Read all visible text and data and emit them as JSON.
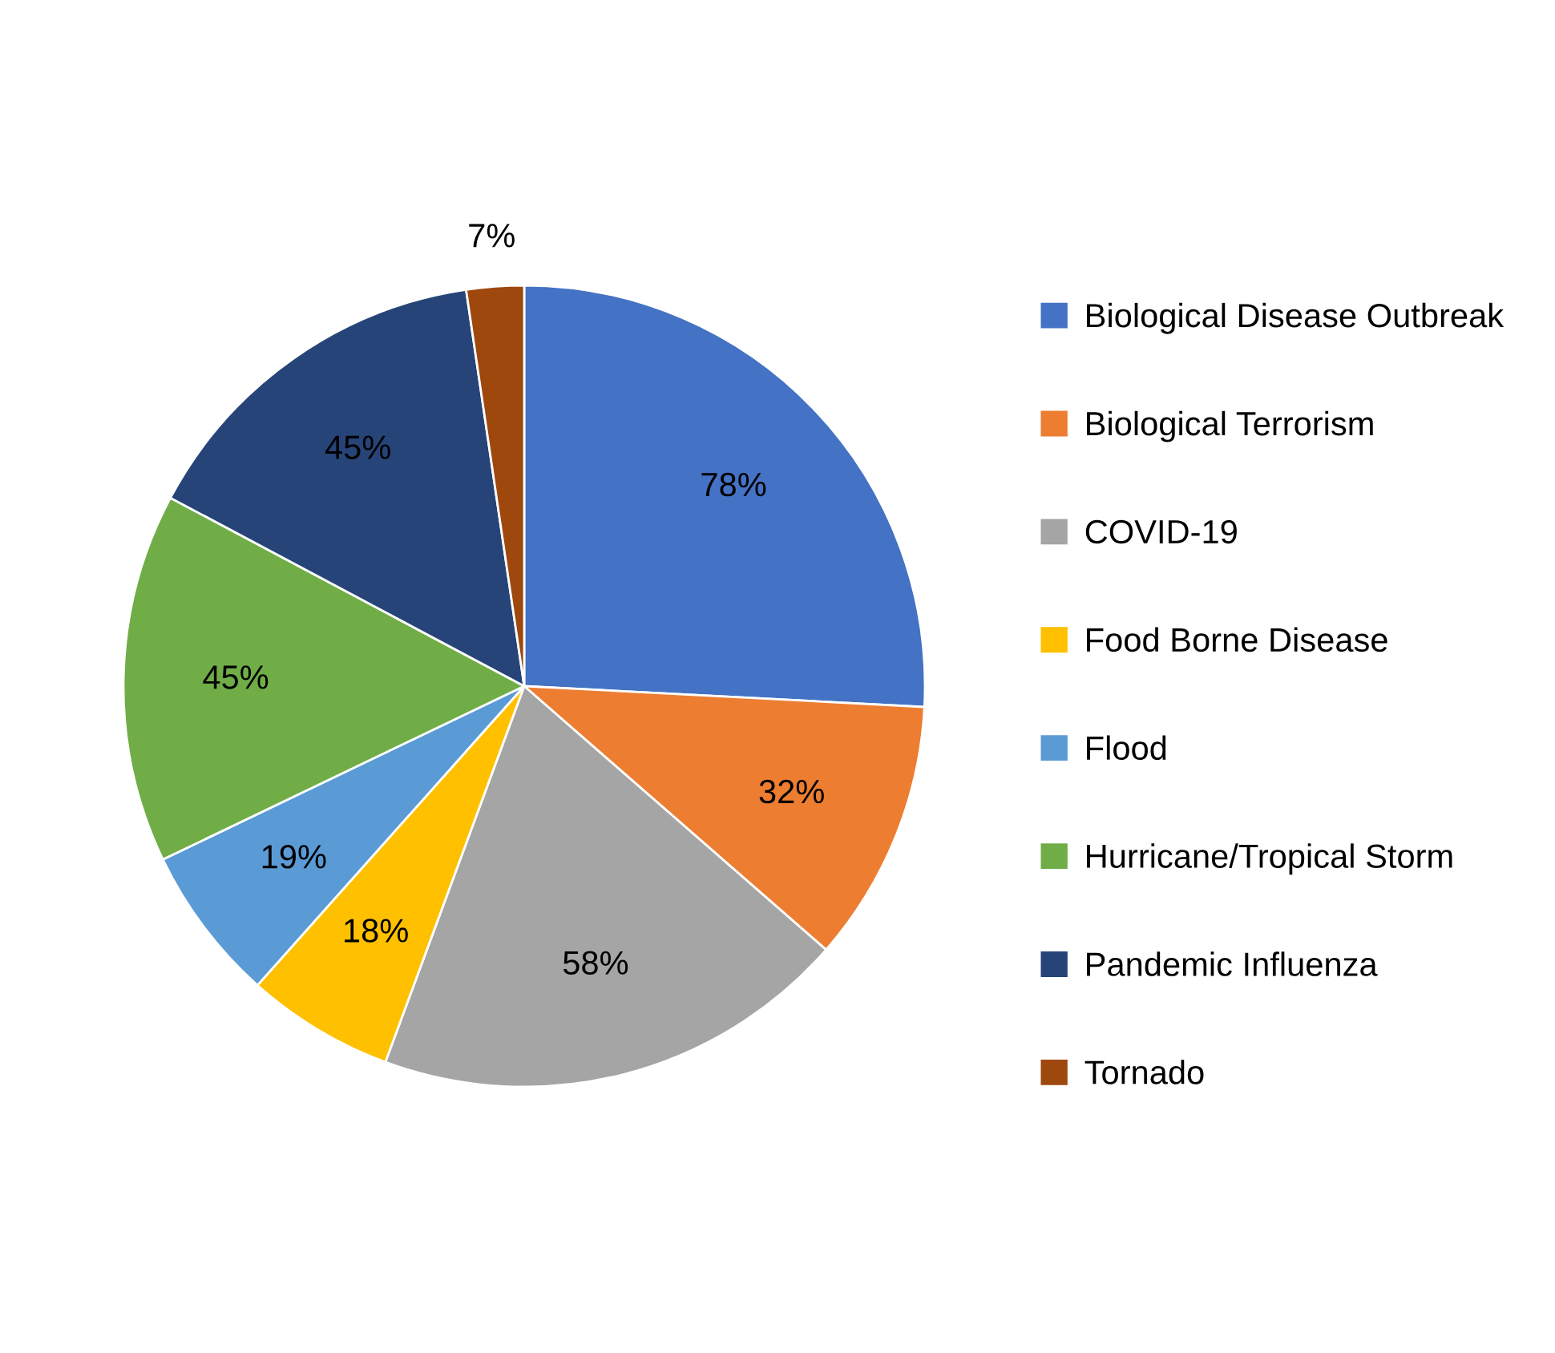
{
  "chart_data": {
    "type": "pie",
    "categories": [
      "Biological Disease Outbreak",
      "Biological Terrorism",
      "COVID-19",
      "Food Borne Disease",
      "Flood",
      "Hurricane/Tropical Storm",
      "Pandemic Influenza",
      "Tornado"
    ],
    "values": [
      78,
      32,
      58,
      18,
      19,
      45,
      45,
      7
    ],
    "value_labels": [
      "78%",
      "32%",
      "58%",
      "18%",
      "19%",
      "45%",
      "45%",
      "7%"
    ],
    "colors": [
      "#4472c4",
      "#ed7d31",
      "#a5a5a5",
      "#ffc000",
      "#5b9bd5",
      "#70ad47",
      "#264478",
      "#9e480e"
    ],
    "legend": "right"
  }
}
